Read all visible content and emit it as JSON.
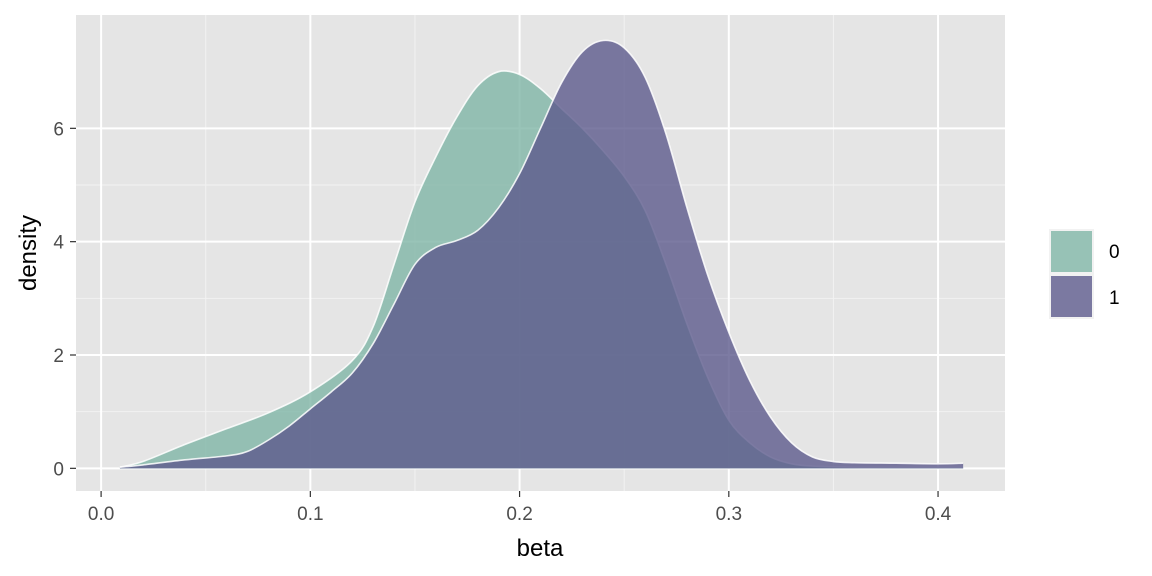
{
  "chart_data": {
    "type": "area",
    "subtype": "density",
    "xlabel": "beta",
    "ylabel": "density",
    "xlim": [
      -0.012,
      0.432
    ],
    "ylim": [
      -0.4,
      8.0
    ],
    "x_ticks": [
      0.0,
      0.1,
      0.2,
      0.3,
      0.4
    ],
    "x_tick_labels": [
      "0.0",
      "0.1",
      "0.2",
      "0.3",
      "0.4"
    ],
    "y_ticks": [
      0,
      2,
      4,
      6
    ],
    "y_tick_labels": [
      "0",
      "2",
      "4",
      "6"
    ],
    "grid": true,
    "legend_position": "right",
    "series": [
      {
        "name": "0",
        "color": "#7fb5a6",
        "points": [
          [
            0.009,
            0.02
          ],
          [
            0.02,
            0.12
          ],
          [
            0.04,
            0.42
          ],
          [
            0.06,
            0.7
          ],
          [
            0.08,
            0.98
          ],
          [
            0.1,
            1.35
          ],
          [
            0.12,
            1.9
          ],
          [
            0.13,
            2.5
          ],
          [
            0.14,
            3.6
          ],
          [
            0.15,
            4.7
          ],
          [
            0.16,
            5.5
          ],
          [
            0.17,
            6.2
          ],
          [
            0.18,
            6.75
          ],
          [
            0.19,
            7.0
          ],
          [
            0.2,
            6.95
          ],
          [
            0.21,
            6.7
          ],
          [
            0.22,
            6.35
          ],
          [
            0.23,
            6.0
          ],
          [
            0.24,
            5.6
          ],
          [
            0.25,
            5.15
          ],
          [
            0.26,
            4.55
          ],
          [
            0.27,
            3.6
          ],
          [
            0.28,
            2.55
          ],
          [
            0.29,
            1.6
          ],
          [
            0.3,
            0.85
          ],
          [
            0.31,
            0.45
          ],
          [
            0.32,
            0.2
          ],
          [
            0.33,
            0.08
          ],
          [
            0.34,
            0.04
          ],
          [
            0.36,
            0.02
          ],
          [
            0.38,
            0.02
          ],
          [
            0.4,
            0.02
          ],
          [
            0.412,
            0.02
          ]
        ]
      },
      {
        "name": "1",
        "color": "#5c5a8c",
        "points": [
          [
            0.009,
            0.02
          ],
          [
            0.02,
            0.06
          ],
          [
            0.04,
            0.15
          ],
          [
            0.06,
            0.22
          ],
          [
            0.07,
            0.3
          ],
          [
            0.08,
            0.5
          ],
          [
            0.09,
            0.75
          ],
          [
            0.1,
            1.05
          ],
          [
            0.11,
            1.35
          ],
          [
            0.12,
            1.68
          ],
          [
            0.13,
            2.2
          ],
          [
            0.14,
            2.9
          ],
          [
            0.15,
            3.6
          ],
          [
            0.16,
            3.9
          ],
          [
            0.17,
            4.02
          ],
          [
            0.18,
            4.2
          ],
          [
            0.19,
            4.6
          ],
          [
            0.2,
            5.2
          ],
          [
            0.21,
            6.0
          ],
          [
            0.22,
            6.8
          ],
          [
            0.23,
            7.35
          ],
          [
            0.24,
            7.55
          ],
          [
            0.25,
            7.42
          ],
          [
            0.26,
            6.9
          ],
          [
            0.27,
            5.9
          ],
          [
            0.28,
            4.6
          ],
          [
            0.29,
            3.4
          ],
          [
            0.3,
            2.4
          ],
          [
            0.31,
            1.55
          ],
          [
            0.32,
            0.9
          ],
          [
            0.33,
            0.45
          ],
          [
            0.34,
            0.2
          ],
          [
            0.35,
            0.12
          ],
          [
            0.36,
            0.1
          ],
          [
            0.38,
            0.09
          ],
          [
            0.4,
            0.08
          ],
          [
            0.412,
            0.09
          ]
        ]
      }
    ]
  },
  "legend": {
    "items": [
      {
        "label": "0",
        "color": "#7fb5a6"
      },
      {
        "label": "1",
        "color": "#5c5a8c"
      }
    ]
  }
}
